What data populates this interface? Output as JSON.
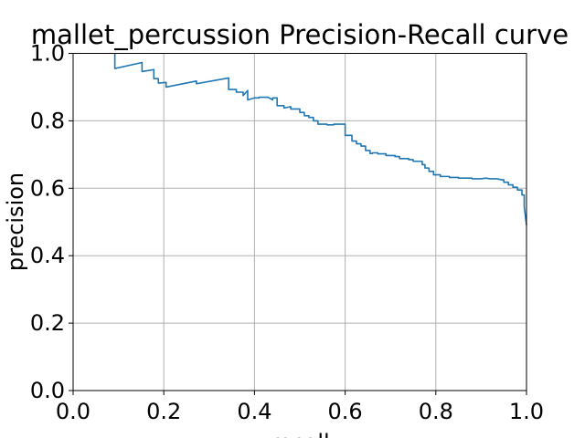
{
  "chart_data": {
    "type": "line",
    "title": "mallet_percussion Precision-Recall curve",
    "xlabel": "recall",
    "ylabel": "precision",
    "xlim": [
      0.0,
      1.0
    ],
    "ylim": [
      0.0,
      1.0
    ],
    "xticks": [
      "0.0",
      "0.2",
      "0.4",
      "0.6",
      "0.8",
      "1.0"
    ],
    "yticks": [
      "0.0",
      "0.2",
      "0.4",
      "0.6",
      "0.8",
      "1.0"
    ],
    "grid": true,
    "series": [
      {
        "color": "#1f77b4",
        "x": [
          0.092,
          0.092,
          0.152,
          0.152,
          0.178,
          0.178,
          0.188,
          0.188,
          0.205,
          0.205,
          0.272,
          0.272,
          0.343,
          0.343,
          0.36,
          0.36,
          0.375,
          0.375,
          0.385,
          0.385,
          0.4,
          0.41,
          0.41,
          0.43,
          0.44,
          0.44,
          0.45,
          0.45,
          0.465,
          0.465,
          0.48,
          0.48,
          0.5,
          0.5,
          0.51,
          0.51,
          0.52,
          0.52,
          0.53,
          0.53,
          0.54,
          0.54,
          0.56,
          0.56,
          0.575,
          0.575,
          0.6,
          0.6,
          0.615,
          0.615,
          0.625,
          0.625,
          0.635,
          0.635,
          0.645,
          0.645,
          0.655,
          0.655,
          0.66,
          0.66,
          0.672,
          0.672,
          0.69,
          0.69,
          0.71,
          0.71,
          0.72,
          0.72,
          0.74,
          0.74,
          0.75,
          0.75,
          0.77,
          0.77,
          0.776,
          0.776,
          0.785,
          0.785,
          0.795,
          0.795,
          0.81,
          0.81,
          0.83,
          0.83,
          0.85,
          0.85,
          0.88,
          0.88,
          0.9,
          0.91,
          0.92,
          0.935,
          0.945,
          0.95,
          0.95,
          0.96,
          0.96,
          0.97,
          0.97,
          0.98,
          0.98,
          0.99,
          0.99,
          0.995,
          0.995,
          1.0
        ],
        "y": [
          1.0,
          0.955,
          0.973,
          0.946,
          0.952,
          0.925,
          0.925,
          0.912,
          0.914,
          0.9,
          0.918,
          0.91,
          0.927,
          0.893,
          0.893,
          0.885,
          0.885,
          0.875,
          0.89,
          0.862,
          0.868,
          0.868,
          0.87,
          0.87,
          0.862,
          0.868,
          0.868,
          0.845,
          0.845,
          0.838,
          0.842,
          0.835,
          0.835,
          0.825,
          0.825,
          0.815,
          0.815,
          0.81,
          0.81,
          0.8,
          0.8,
          0.79,
          0.79,
          0.788,
          0.788,
          0.79,
          0.79,
          0.757,
          0.757,
          0.74,
          0.74,
          0.732,
          0.732,
          0.725,
          0.725,
          0.712,
          0.712,
          0.703,
          0.703,
          0.705,
          0.705,
          0.702,
          0.702,
          0.697,
          0.697,
          0.694,
          0.694,
          0.688,
          0.688,
          0.685,
          0.685,
          0.68,
          0.68,
          0.67,
          0.67,
          0.66,
          0.66,
          0.65,
          0.65,
          0.64,
          0.64,
          0.635,
          0.635,
          0.632,
          0.632,
          0.63,
          0.63,
          0.628,
          0.628,
          0.63,
          0.628,
          0.628,
          0.625,
          0.625,
          0.618,
          0.618,
          0.61,
          0.61,
          0.603,
          0.603,
          0.595,
          0.595,
          0.58,
          0.58,
          0.545,
          0.49
        ]
      }
    ]
  }
}
